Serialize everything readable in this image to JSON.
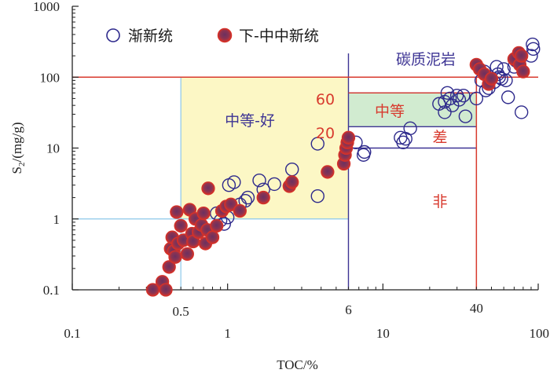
{
  "chart_data": {
    "type": "scatter",
    "x_scale": "log",
    "y_scale": "log",
    "xlim": [
      0.1,
      100
    ],
    "ylim": [
      0.1,
      1000
    ],
    "xlabel": "TOC/%",
    "ylabel": "S",
    "ylabel_sub": "2",
    "ylabel_unit": "/(mg/g)",
    "x_ticks": [
      {
        "v": 0.1,
        "label": "0.1"
      },
      {
        "v": 1,
        "label": "1"
      },
      {
        "v": 10,
        "label": "10"
      },
      {
        "v": 100,
        "label": "100"
      }
    ],
    "y_ticks": [
      {
        "v": 0.1,
        "label": "0.1"
      },
      {
        "v": 1,
        "label": "1"
      },
      {
        "v": 10,
        "label": "10"
      },
      {
        "v": 100,
        "label": "100"
      },
      {
        "v": 1000,
        "label": "1000"
      }
    ],
    "legend": {
      "placement": "top-left",
      "items": [
        {
          "label": "渐新统",
          "marker": "open-circle"
        },
        {
          "label": "下-中中新统",
          "marker": "filled-circle"
        }
      ]
    },
    "colors": {
      "open": "#2e2a8c",
      "filled_outer": "#d63128",
      "filled_inner": "#6b3060",
      "red_line": "#d83a2e",
      "purple_line": "#3d3494",
      "blue_line": "#8cc8ea",
      "yellow_zone": "#fcf7c5",
      "green_zone": "#d1ebd0"
    },
    "threshold_labels": [
      {
        "x": 0.5,
        "label": "0.5"
      },
      {
        "x": 6,
        "label": "6"
      },
      {
        "x": 40,
        "label": "40"
      }
    ],
    "zone_labels": [
      {
        "text": "碳质泥岩",
        "color": "purple"
      },
      {
        "text": "中等-好",
        "color": "purple"
      },
      {
        "text": "中等",
        "color": "red"
      },
      {
        "text": "差",
        "color": "red"
      },
      {
        "text": "非",
        "color": "red"
      },
      {
        "text": "60",
        "color": "red"
      },
      {
        "text": "20",
        "color": "red"
      }
    ],
    "series": [
      {
        "name": "渐新统",
        "marker": "open-circle",
        "points": [
          [
            0.85,
            1.2
          ],
          [
            0.9,
            0.95
          ],
          [
            0.95,
            0.85
          ],
          [
            1.0,
            1.05
          ],
          [
            1.02,
            3.0
          ],
          [
            1.1,
            3.3
          ],
          [
            1.2,
            1.6
          ],
          [
            1.3,
            1.8
          ],
          [
            1.35,
            2.0
          ],
          [
            1.6,
            3.5
          ],
          [
            1.7,
            2.6
          ],
          [
            2.0,
            3.1
          ],
          [
            2.6,
            5.0
          ],
          [
            3.8,
            11.5
          ],
          [
            3.8,
            2.1
          ],
          [
            6.7,
            12.0
          ],
          [
            7.5,
            8.0
          ],
          [
            7.6,
            8.8
          ],
          [
            13.0,
            14.0
          ],
          [
            13.5,
            12.0
          ],
          [
            14.0,
            13.5
          ],
          [
            15.0,
            19.0
          ],
          [
            23.0,
            42.0
          ],
          [
            25.0,
            45.0
          ],
          [
            25.0,
            32.0
          ],
          [
            26.0,
            60.0
          ],
          [
            27.0,
            50.0
          ],
          [
            28.0,
            40.0
          ],
          [
            30.0,
            55.0
          ],
          [
            31.0,
            48.0
          ],
          [
            33.0,
            55.0
          ],
          [
            34.0,
            28.0
          ],
          [
            40.0,
            50.0
          ],
          [
            43.0,
            90.0
          ],
          [
            45.0,
            120.0
          ],
          [
            46.0,
            65.0
          ],
          [
            48.0,
            70.0
          ],
          [
            52.0,
            85.0
          ],
          [
            54.0,
            140.0
          ],
          [
            55.0,
            110.0
          ],
          [
            56.0,
            100.0
          ],
          [
            58.0,
            95.0
          ],
          [
            60.0,
            130.0
          ],
          [
            62.0,
            90.0
          ],
          [
            64.0,
            52.0
          ],
          [
            70.0,
            140.0
          ],
          [
            72.0,
            170.0
          ],
          [
            76.0,
            180.0
          ],
          [
            78.0,
            32.0
          ],
          [
            90.0,
            200.0
          ],
          [
            92.0,
            290.0
          ],
          [
            93.0,
            250.0
          ]
        ]
      },
      {
        "name": "下-中中新统",
        "marker": "filled-circle",
        "points": [
          [
            0.33,
            0.1
          ],
          [
            0.38,
            0.13
          ],
          [
            0.4,
            0.1
          ],
          [
            0.42,
            0.21
          ],
          [
            0.43,
            0.38
          ],
          [
            0.44,
            0.55
          ],
          [
            0.45,
            0.35
          ],
          [
            0.46,
            0.29
          ],
          [
            0.47,
            1.25
          ],
          [
            0.48,
            0.45
          ],
          [
            0.5,
            0.8
          ],
          [
            0.52,
            0.5
          ],
          [
            0.55,
            0.32
          ],
          [
            0.57,
            1.35
          ],
          [
            0.59,
            0.62
          ],
          [
            0.6,
            0.48
          ],
          [
            0.62,
            1.0
          ],
          [
            0.65,
            0.65
          ],
          [
            0.68,
            0.82
          ],
          [
            0.7,
            1.2
          ],
          [
            0.72,
            0.45
          ],
          [
            0.74,
            0.7
          ],
          [
            0.75,
            2.7
          ],
          [
            0.8,
            0.55
          ],
          [
            0.85,
            0.8
          ],
          [
            0.92,
            1.3
          ],
          [
            0.98,
            1.5
          ],
          [
            1.05,
            1.6
          ],
          [
            1.2,
            1.3
          ],
          [
            1.7,
            2.0
          ],
          [
            2.5,
            2.9
          ],
          [
            2.6,
            3.3
          ],
          [
            4.4,
            4.6
          ],
          [
            5.6,
            6.0
          ],
          [
            5.7,
            8.0
          ],
          [
            5.8,
            10.0
          ],
          [
            5.9,
            12.0
          ],
          [
            6.0,
            14.0
          ],
          [
            40.0,
            150.0
          ],
          [
            42.0,
            130.0
          ],
          [
            45.0,
            110.0
          ],
          [
            48.0,
            80.0
          ],
          [
            50.0,
            95.0
          ],
          [
            70.0,
            180.0
          ],
          [
            75.0,
            220.0
          ],
          [
            76.0,
            150.0
          ],
          [
            78.0,
            200.0
          ],
          [
            80.0,
            120.0
          ]
        ]
      }
    ]
  }
}
